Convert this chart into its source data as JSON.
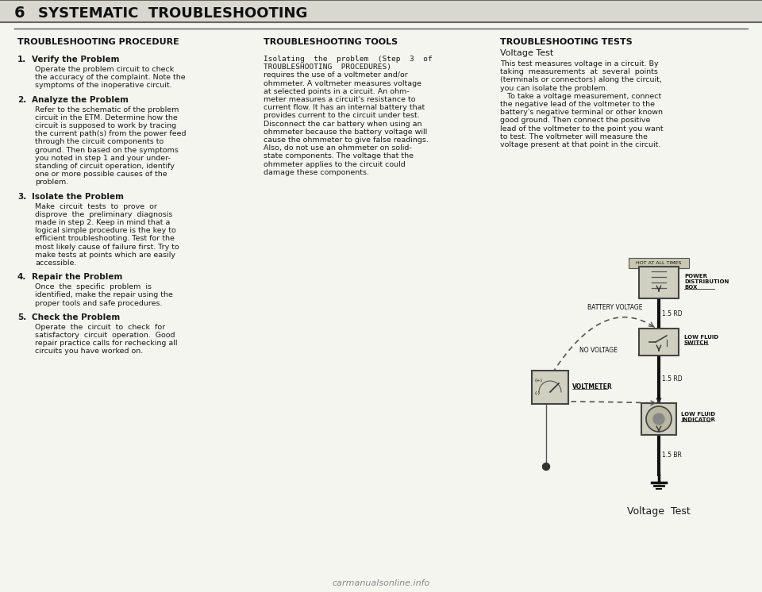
{
  "bg_color": "#f5f5f0",
  "page_color": "#f5f5f0",
  "title_number": "6",
  "title_text": "SYSTEMATIC  TROUBLESHOOTING",
  "col1_header": "TROUBLESHOOTING PROCEDURE",
  "col2_header": "TROUBLESHOOTING TOOLS",
  "col3_header": "TROUBLESHOOTING TESTS",
  "col1_items": [
    {
      "num": "1.",
      "bold": "Verify the Problem",
      "text": "Operate the problem circuit to check\nthe accuracy of the complaint. Note the\nsymptoms of the inoperative circuit."
    },
    {
      "num": "2.",
      "bold": "Analyze the Problem",
      "text": "Refer to the schematic of the problem\ncircuit in the ETM. Determine how the\ncircuit is supposed to work by tracing\nthe current path(s) from the power feed\nthrough the circuit components to\nground. Then based on the symptoms\nyou noted in step 1 and your under-\nstanding of circuit operation, identify\none or more possible causes of the\nproblem."
    },
    {
      "num": "3.",
      "bold": "Isolate the Problem",
      "text": "Make  circuit  tests  to  prove  or\ndisprove  the  preliminary  diagnosis\nmade in step 2. Keep in mind that a\nlogical simple procedure is the key to\nefficient troubleshooting. Test for the\nmost likely cause of failure first. Try to\nmake tests at points which are easily\naccessible."
    },
    {
      "num": "4.",
      "bold": "Repair the Problem",
      "text": "Once  the  specific  problem  is\nidentified, make the repair using the\nproper tools and safe procedures."
    },
    {
      "num": "5.",
      "bold": "Check the Problem",
      "text": "Operate  the  circuit  to  check  for\nsatisfactory  circuit  operation.  Good\nrepair practice calls for rechecking all\ncircuits you have worked on."
    }
  ],
  "col2_text_lines": [
    {
      "text": "Isolating  the  problem  (Step  3  of",
      "mono": true
    },
    {
      "text": "TROUBLESHOOTING  PROCEDURES)",
      "mono": true
    },
    {
      "text": "requires the use of a voltmeter and/or",
      "mono": false
    },
    {
      "text": "ohmmeter. A voltmeter measures voltage",
      "mono": false
    },
    {
      "text": "at selected points in a circuit. An ohm-",
      "mono": false
    },
    {
      "text": "meter measures a circuit's resistance to",
      "mono": false
    },
    {
      "text": "current flow. It has an internal battery that",
      "mono": false
    },
    {
      "text": "provides current to the circuit under test.",
      "mono": false
    },
    {
      "text": "Disconnect the car battery when using an",
      "mono": false
    },
    {
      "text": "ohmmeter because the battery voltage will",
      "mono": false
    },
    {
      "text": "cause the ohmmeter to give false readings.",
      "mono": false
    },
    {
      "text": "Also, do not use an ohmmeter on solid-",
      "mono": false
    },
    {
      "text": "state components. The voltage that the",
      "mono": false
    },
    {
      "text": "ohmmeter applies to the circuit could",
      "mono": false
    },
    {
      "text": "damage these components.",
      "mono": false
    }
  ],
  "col3_subheader": "Voltage Test",
  "col3_text_lines": [
    "This test measures voltage in a circuit. By",
    "taking  measurements  at  several  points",
    "(terminals or connectors) along the circuit,",
    "you can isolate the problem.",
    "   To take a voltage measurement, connect",
    "the negative lead of the voltmeter to the",
    "battery's negative terminal or other known",
    "good ground. Then connect the positive",
    "lead of the voltmeter to the point you want",
    "to test. The voltmeter will measure the",
    "voltage present at that point in the circuit."
  ],
  "diagram_caption": "Voltage  Test",
  "watermark": "carmanualsonline.info",
  "text_color": "#1a1a1a",
  "header_color": "#111111"
}
